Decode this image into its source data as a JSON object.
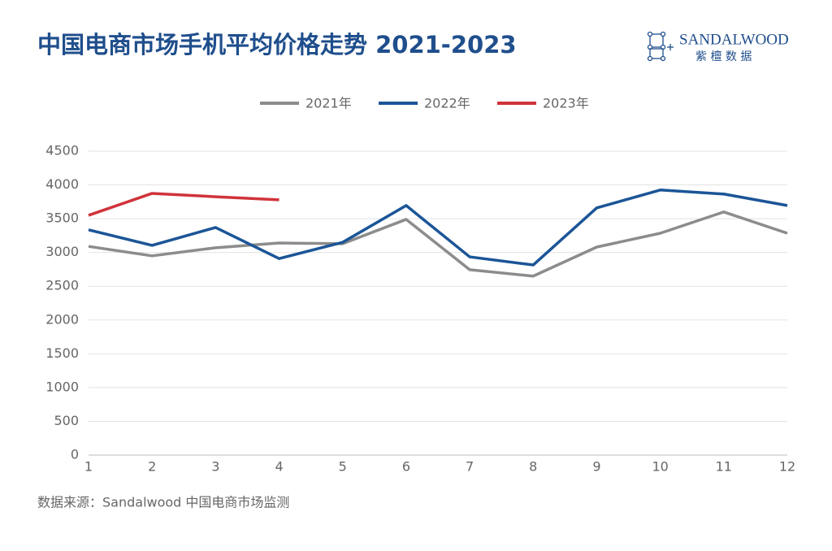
{
  "chart_data": {
    "type": "line",
    "title": "中国电商市场手机平均价格走势 2021-2023",
    "brand": {
      "name": "SANDALWOOD",
      "subname": "紫 檀 数 据"
    },
    "source": "数据来源：Sandalwood 中国电商市场监测",
    "categories": [
      "1",
      "2",
      "3",
      "4",
      "5",
      "6",
      "7",
      "8",
      "9",
      "10",
      "11",
      "12"
    ],
    "series": [
      {
        "name": "2021年",
        "color": "#8c8c8c",
        "values": [
          3090,
          2950,
          3070,
          3140,
          3130,
          3490,
          2745,
          2650,
          3080,
          3285,
          3600,
          3285
        ]
      },
      {
        "name": "2022年",
        "color": "#1b5597",
        "values": [
          3335,
          3105,
          3370,
          2910,
          3150,
          3695,
          2935,
          2815,
          3660,
          3925,
          3865,
          3695
        ]
      },
      {
        "name": "2023年",
        "color": "#d0333a",
        "values": [
          3550,
          3875,
          3825,
          3780,
          null,
          null,
          null,
          null,
          null,
          null,
          null,
          null
        ]
      }
    ],
    "ylim": [
      0,
      4500
    ],
    "yticks": [
      0,
      500,
      1000,
      1500,
      2000,
      2500,
      3000,
      3500,
      4000,
      4500
    ],
    "grid": true,
    "legend": "top"
  }
}
